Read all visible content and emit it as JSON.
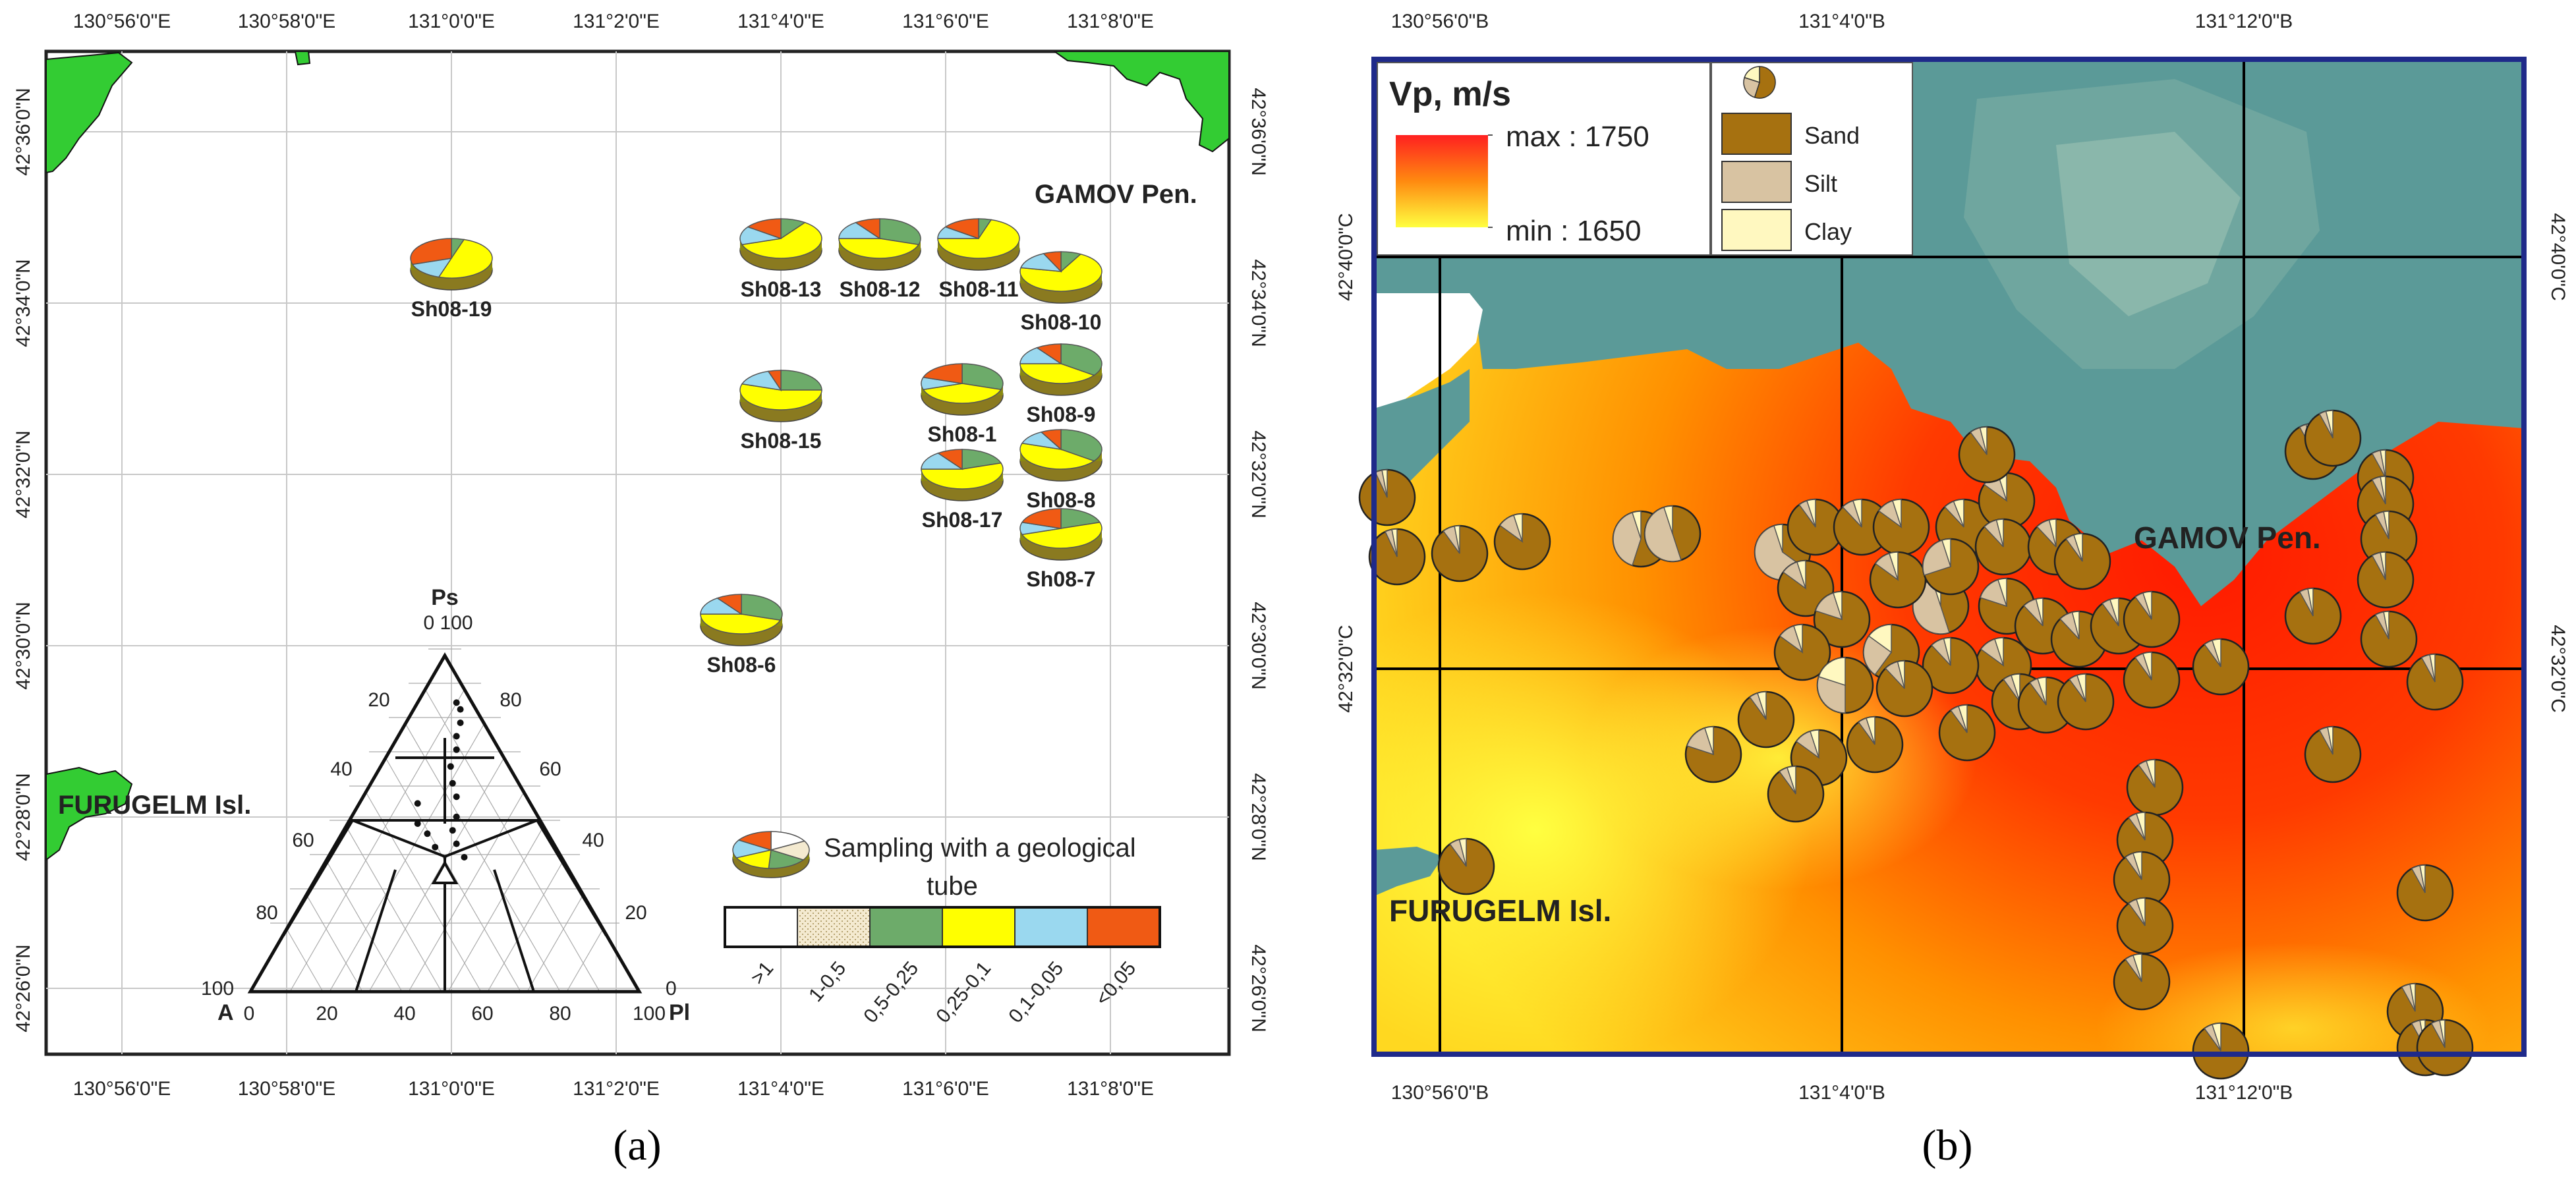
{
  "panel_a": {
    "caption": "(a)",
    "axis": {
      "top_lon": [
        "130°56'0\"E",
        "130°58'0\"E",
        "131°0'0\"E",
        "131°2'0\"E",
        "131°4'0\"E",
        "131°6'0\"E",
        "131°8'0\"E"
      ],
      "bottom_lon": [
        "130°56'0\"E",
        "130°58'0\"E",
        "131°0'0\"E",
        "131°2'0\"E",
        "131°4'0\"E",
        "131°6'0\"E",
        "131°8'0\"E"
      ],
      "left_lat": [
        "42°36'0\"N",
        "42°34'0\"N",
        "42°32'0\"N",
        "42°30'0\"N",
        "42°28'0\"N",
        "42°26'0\"N"
      ],
      "right_lat": [
        "42°36'0\"N",
        "42°34'0\"N",
        "42°32'0\"N",
        "42°30'0\"N",
        "42°28'0\"N",
        "42°26'0\"N"
      ]
    },
    "places": {
      "gamov": "GAMOV Pen.",
      "furugelm": "FURUGELM Isl."
    },
    "stations": [
      {
        "name": "Sh08-19",
        "fractions": [
          0,
          0,
          0.05,
          0.5,
          0.15,
          0.3
        ]
      },
      {
        "name": "Sh08-13",
        "fractions": [
          0,
          0,
          0.1,
          0.6,
          0.15,
          0.15
        ]
      },
      {
        "name": "Sh08-12",
        "fractions": [
          0,
          0,
          0.3,
          0.45,
          0.15,
          0.1
        ]
      },
      {
        "name": "Sh08-11",
        "fractions": [
          0,
          0,
          0.05,
          0.7,
          0.1,
          0.15
        ]
      },
      {
        "name": "Sh08-10",
        "fractions": [
          0,
          0,
          0.08,
          0.7,
          0.15,
          0.07
        ]
      },
      {
        "name": "Sh08-15",
        "fractions": [
          0,
          0,
          0.25,
          0.55,
          0.15,
          0.05
        ]
      },
      {
        "name": "Sh08-1",
        "fractions": [
          0,
          0,
          0.3,
          0.4,
          0.1,
          0.2
        ]
      },
      {
        "name": "Sh08-9",
        "fractions": [
          0,
          0,
          0.35,
          0.4,
          0.15,
          0.1
        ]
      },
      {
        "name": "Sh08-8",
        "fractions": [
          0,
          0,
          0.35,
          0.45,
          0.12,
          0.08
        ]
      },
      {
        "name": "Sh08-17",
        "fractions": [
          0,
          0,
          0.2,
          0.55,
          0.15,
          0.1
        ]
      },
      {
        "name": "Sh08-7",
        "fractions": [
          0,
          0,
          0.2,
          0.5,
          0.1,
          0.2
        ]
      },
      {
        "name": "Sh08-6",
        "fractions": [
          0,
          0,
          0.3,
          0.45,
          0.15,
          0.1
        ]
      }
    ],
    "legend": {
      "title_line1": "Sampling with a geological",
      "title_line2": "tube",
      "classes": [
        {
          "label": ">1",
          "color": "#ffffff"
        },
        {
          "label": "1-0,5",
          "color": "#f4ead0"
        },
        {
          "label": "0,5-0,25",
          "color": "#6dab6a"
        },
        {
          "label": "0,25-0,1",
          "color": "#ffff00"
        },
        {
          "label": "0,1-0,05",
          "color": "#9ad8ef"
        },
        {
          "label": "<0,05",
          "color": "#f05a14"
        }
      ]
    },
    "ternary": {
      "vertex_top": "Ps",
      "vertex_left": "A",
      "vertex_right": "Pl",
      "top_values": "0 100",
      "left_values": "100",
      "right_values": "0",
      "bottom_ticks": [
        "0",
        "20",
        "40",
        "60",
        "80",
        "100"
      ],
      "left_ticks": [
        "20",
        "40",
        "60",
        "80"
      ],
      "right_ticks": [
        "80",
        "60",
        "40",
        "20"
      ],
      "points": [
        [
          0.1,
          0.86
        ],
        [
          0.12,
          0.84
        ],
        [
          0.14,
          0.8
        ],
        [
          0.15,
          0.76
        ],
        [
          0.17,
          0.72
        ],
        [
          0.18,
          0.67
        ],
        [
          0.21,
          0.62
        ],
        [
          0.24,
          0.58
        ],
        [
          0.27,
          0.52
        ],
        [
          0.28,
          0.48
        ],
        [
          0.31,
          0.44
        ],
        [
          0.35,
          0.4
        ],
        [
          0.15,
          0.56
        ],
        [
          0.18,
          0.5
        ],
        [
          0.22,
          0.47
        ],
        [
          0.26,
          0.43
        ]
      ]
    }
  },
  "panel_b": {
    "caption": "(b)",
    "axis": {
      "top_lon": [
        "130°56'0\"B",
        "131°4'0\"B",
        "131°12'0\"B"
      ],
      "bottom_lon": [
        "130°56'0\"B",
        "131°4'0\"B",
        "131°12'0\"B"
      ],
      "left_lat": [
        "42°40'0\"C",
        "42°32'0\"C"
      ],
      "right_lat": [
        "42°40'0\"C",
        "42°32'0\"C"
      ]
    },
    "places": {
      "gamov": "GAMOV Pen.",
      "furugelm": "FURUGELM Isl."
    },
    "vp_legend": {
      "title": "Vp, m/s",
      "max_label": "max : 1750",
      "min_label": "min :  1650",
      "max": 1750,
      "min": 1650
    },
    "sediment_legend": [
      {
        "label": "Sand",
        "color": "#a67110"
      },
      {
        "label": "Silt",
        "color": "#d8c3a2"
      },
      {
        "label": "Clay",
        "color": "#fff8c0"
      }
    ],
    "colors": {
      "sea_high": "#ff2a00",
      "sea_low": "#ffff30",
      "land": "#5b9a98",
      "frame": "#1f2a8a",
      "land_green": "#33cc33"
    }
  }
}
